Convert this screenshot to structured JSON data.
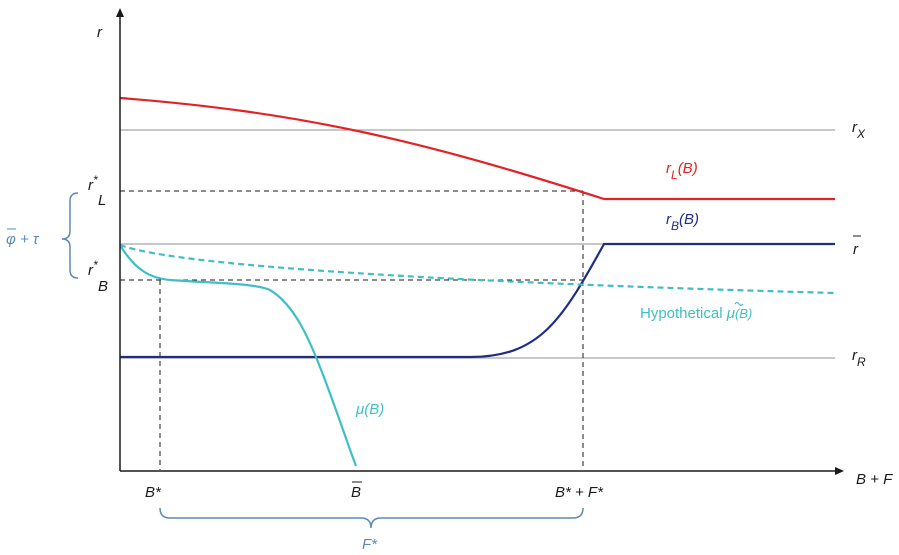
{
  "axes": {
    "y_label": "r",
    "x_label": "B + F"
  },
  "levels": {
    "r_x": "r",
    "r_x_sub": "X",
    "r_bar": "r",
    "r_r": "r",
    "r_r_sub": "R"
  },
  "ticks": {
    "r_l_star": "r",
    "r_l_star_sup": "*",
    "r_l_star_sub": "L",
    "r_b_star": "r",
    "r_b_star_sup": "*",
    "r_b_star_sub": "B",
    "b_star": "B*",
    "b_bar": "B",
    "b_star_f_star": "B* + F*"
  },
  "curves": {
    "r_l": {
      "base": "r",
      "sub": "L",
      "arg": "(B)",
      "color": "#e32226"
    },
    "r_b": {
      "base": "r",
      "sub": "B",
      "arg": "(B)",
      "color": "#1f2d84"
    },
    "mu": {
      "label": "μ(B)",
      "color": "#3fbfc5"
    },
    "mu_hyp": {
      "prefix": "Hypothetical ",
      "sym": "μ",
      "arg": "(B)",
      "color": "#3fbfc5"
    }
  },
  "braces": {
    "left": "φ + τ",
    "bottom": "F*"
  },
  "colors": {
    "grey_level": "#a8a8a8",
    "axis": "#1a1a1a",
    "dashed": "#1a1a1a",
    "brace": "#5b8bb4"
  }
}
